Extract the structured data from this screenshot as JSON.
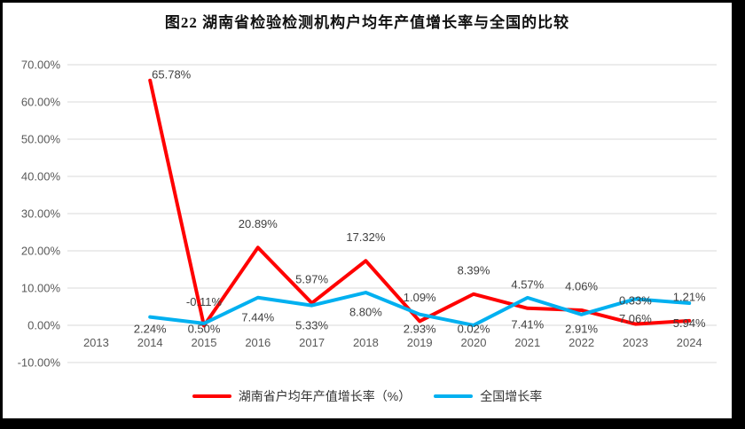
{
  "chart_data": {
    "type": "line",
    "title": "图22 湖南省检验检测机构户均年产值增长率与全国的比较",
    "categories": [
      "2013",
      "2014",
      "2015",
      "2016",
      "2017",
      "2018",
      "2019",
      "2020",
      "2021",
      "2022",
      "2023",
      "2024"
    ],
    "series": [
      {
        "name": "湖南省户均年产值增长率（%）",
        "color": "#FF0000",
        "values": [
          null,
          65.78,
          -0.11,
          20.89,
          5.97,
          17.32,
          1.09,
          8.39,
          4.57,
          4.06,
          0.33,
          1.21
        ],
        "labels": [
          "",
          "65.78%",
          "-0.11%",
          "20.89%",
          "5.97%",
          "17.32%",
          "1.09%",
          "8.39%",
          "4.57%",
          "4.06%",
          "0.33%",
          "1.21%"
        ]
      },
      {
        "name": "全国增长率",
        "color": "#00B0F0",
        "values": [
          null,
          2.24,
          0.5,
          7.44,
          5.33,
          8.8,
          2.93,
          0.02,
          7.41,
          2.91,
          7.06,
          5.94
        ],
        "labels": [
          "",
          "2.24%",
          "0.50%",
          "7.44%",
          "5.33%",
          "8.80%",
          "2.93%",
          "0.02%",
          "7.41%",
          "2.91%",
          "7.06%",
          "5.94%"
        ]
      }
    ],
    "y_axis": {
      "ticks": [
        "70.00%",
        "60.00%",
        "50.00%",
        "40.00%",
        "30.00%",
        "20.00%",
        "10.00%",
        "0.00%",
        "-10.00%"
      ],
      "tick_values": [
        70,
        60,
        50,
        40,
        30,
        20,
        10,
        0,
        -10
      ],
      "min": -10,
      "max": 70
    },
    "grid": true,
    "legend_position": "bottom"
  },
  "colors": {
    "hunan_line": "#FF0000",
    "national_line": "#00B0F0",
    "gridline": "#D9D9D9",
    "axis_text": "#595959",
    "data_label_text": "#404040",
    "frame_border": "#000000",
    "background": "#FFFFFF"
  }
}
